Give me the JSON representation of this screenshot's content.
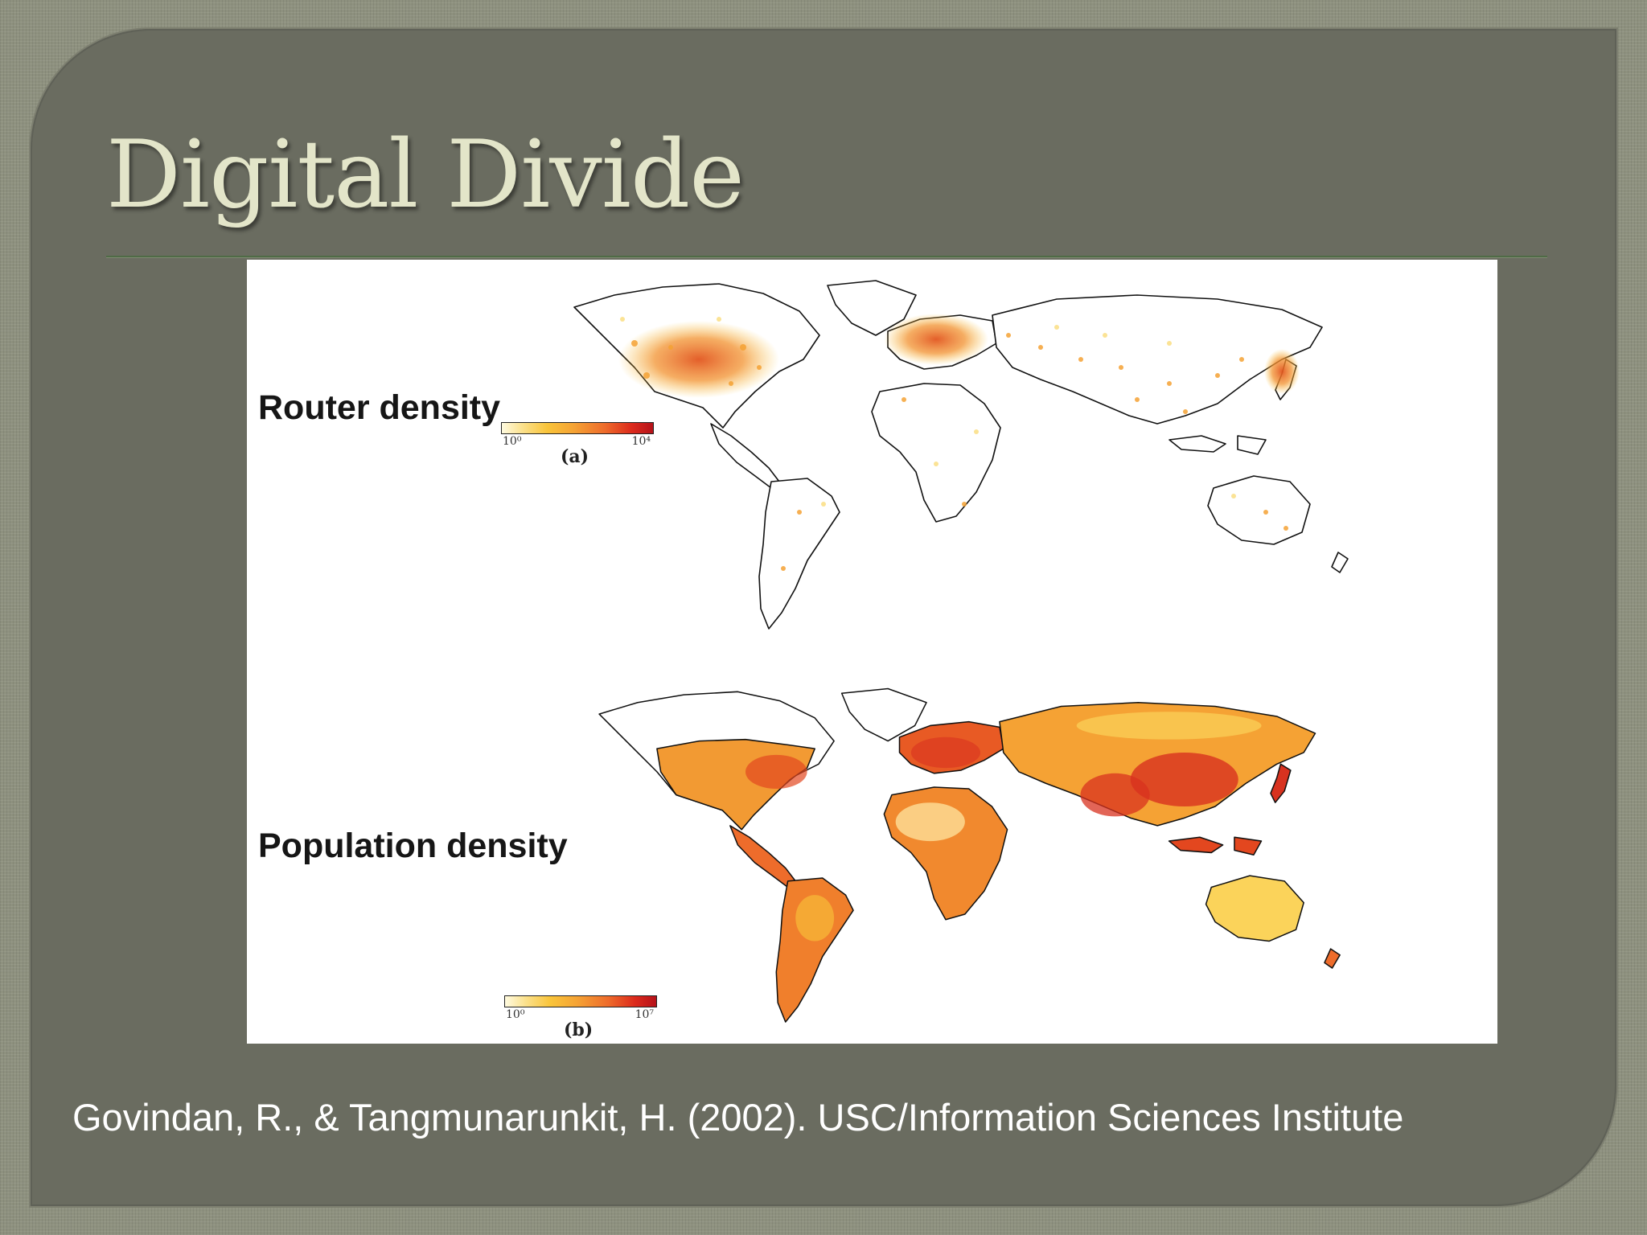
{
  "slide": {
    "title": "Digital Divide",
    "citation": "Govindan, R., & Tangmunarunkit, H. (2002). USC/Information Sciences Institute"
  },
  "figure": {
    "panels": [
      {
        "label": "Router density",
        "tag": "(a)",
        "scale_min": "10⁰",
        "scale_max": "10⁴"
      },
      {
        "label": "Population density",
        "tag": "(b)",
        "scale_min": "10⁰",
        "scale_max": "10⁷"
      }
    ]
  },
  "colors": {
    "background": "#8e917f",
    "panel": "#6a6c60",
    "title": "#e3e5c9",
    "rule": "#4f6b46",
    "density_low": "#fbe08a",
    "density_mid": "#f5a234",
    "density_high": "#dc2a1c"
  }
}
